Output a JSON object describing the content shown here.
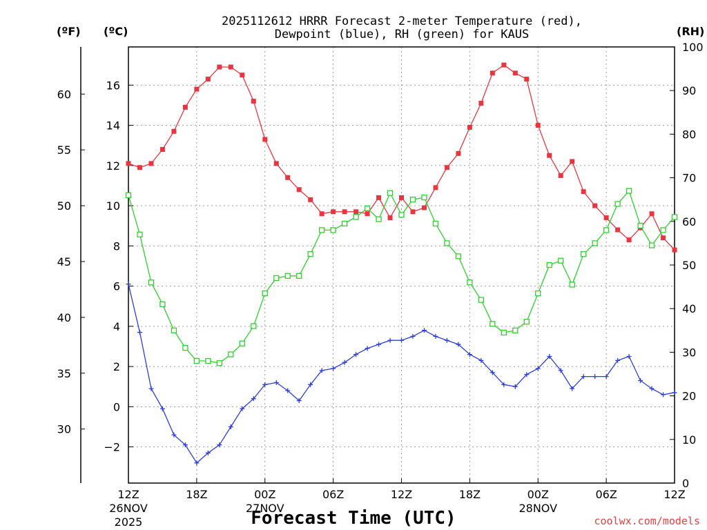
{
  "chart_data": {
    "type": "line",
    "title_line1": "2025112612 HRRR Forecast 2-meter Temperature (red),",
    "title_line2": "Dewpoint (blue), RH (green) for KAUS",
    "xlabel": "Forecast Time (UTC)",
    "credit": "coolwx.com/models",
    "unit_f": "(ºF)",
    "unit_c": "(ºC)",
    "unit_rh": "(RH)",
    "c_range": [
      -3.8,
      17.9
    ],
    "rh_range": [
      0,
      100
    ],
    "f_ticks": [
      30,
      35,
      40,
      45,
      50,
      55,
      60
    ],
    "c_ticks": [
      -2,
      0,
      2,
      4,
      6,
      8,
      10,
      12,
      14,
      16
    ],
    "rh_ticks": [
      0,
      10,
      20,
      30,
      40,
      50,
      60,
      70,
      80,
      90,
      100
    ],
    "x_hours_range": [
      0,
      48
    ],
    "x_ticks": [
      {
        "hour": 0,
        "label": "12Z",
        "date": "26NOV",
        "year": "2025"
      },
      {
        "hour": 6,
        "label": "18Z",
        "date": "",
        "year": ""
      },
      {
        "hour": 12,
        "label": "00Z",
        "date": "27NOV",
        "year": ""
      },
      {
        "hour": 18,
        "label": "06Z",
        "date": "",
        "year": ""
      },
      {
        "hour": 24,
        "label": "12Z",
        "date": "",
        "year": ""
      },
      {
        "hour": 30,
        "label": "18Z",
        "date": "",
        "year": ""
      },
      {
        "hour": 36,
        "label": "00Z",
        "date": "28NOV",
        "year": ""
      },
      {
        "hour": 42,
        "label": "06Z",
        "date": "",
        "year": ""
      },
      {
        "hour": 48,
        "label": "12Z",
        "date": "",
        "year": ""
      }
    ],
    "series": [
      {
        "name": "Temperature",
        "unit": "C",
        "color": "#e8353f",
        "marker": "filled-square",
        "values": [
          12.1,
          11.9,
          12.1,
          12.8,
          13.7,
          14.9,
          15.8,
          16.3,
          16.9,
          16.9,
          16.5,
          15.2,
          13.3,
          12.1,
          11.4,
          10.8,
          10.3,
          9.6,
          9.7,
          9.7,
          9.7,
          9.6,
          10.4,
          9.4,
          10.4,
          9.7,
          9.9,
          10.9,
          11.9,
          12.6,
          13.9,
          15.1,
          16.6,
          17.0,
          16.6,
          16.3,
          14.0,
          12.5,
          11.5,
          12.2,
          10.7,
          10.0,
          9.4,
          8.8,
          8.3,
          8.9,
          9.6,
          8.4,
          7.8
        ]
      },
      {
        "name": "Dewpoint",
        "unit": "C",
        "color": "#2b3de0",
        "marker": "plus",
        "values": [
          6.1,
          3.7,
          0.9,
          -0.1,
          -1.4,
          -1.9,
          -2.8,
          -2.3,
          -1.9,
          -1.0,
          -0.1,
          0.4,
          1.1,
          1.2,
          0.8,
          0.3,
          1.1,
          1.8,
          1.9,
          2.2,
          2.6,
          2.9,
          3.1,
          3.3,
          3.3,
          3.5,
          3.8,
          3.5,
          3.3,
          3.1,
          2.6,
          2.3,
          1.7,
          1.1,
          1.0,
          1.6,
          1.9,
          2.5,
          1.8,
          0.9,
          1.5,
          1.5,
          1.5,
          2.3,
          2.5,
          1.3,
          0.9,
          0.6,
          0.7
        ]
      },
      {
        "name": "RH",
        "unit": "%",
        "color": "#2ed02e",
        "marker": "open-square",
        "values": [
          66,
          57,
          46,
          41,
          35,
          31,
          28,
          28,
          27.5,
          29.5,
          32,
          36,
          43.5,
          47,
          47.5,
          47.5,
          52.5,
          58,
          58,
          59.5,
          61,
          63,
          60.5,
          66.5,
          61.5,
          65,
          65.5,
          59.5,
          55,
          52,
          46,
          42,
          36.5,
          34.5,
          35,
          37,
          43.5,
          50,
          51,
          45.5,
          52.5,
          55,
          58,
          64,
          67,
          59,
          54.5,
          58,
          61
        ]
      }
    ]
  }
}
